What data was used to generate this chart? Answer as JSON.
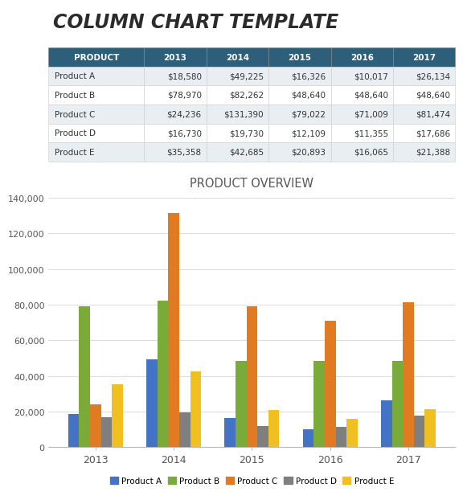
{
  "title": "COLUMN CHART TEMPLATE",
  "chart_title": "PRODUCT OVERVIEW",
  "header_bg": "#2E5F7A",
  "years": [
    "2013",
    "2014",
    "2015",
    "2016",
    "2017"
  ],
  "products": [
    "Product A",
    "Product B",
    "Product C",
    "Product D",
    "Product E"
  ],
  "data": {
    "Product A": [
      18580,
      49225,
      16326,
      10017,
      26134
    ],
    "Product B": [
      78970,
      82262,
      48640,
      48640,
      48640
    ],
    "Product C": [
      24236,
      131390,
      79022,
      71009,
      81474
    ],
    "Product D": [
      16730,
      19730,
      12109,
      11355,
      17686
    ],
    "Product E": [
      35358,
      42685,
      20893,
      16065,
      21388
    ]
  },
  "bar_colors": {
    "Product A": "#4472C4",
    "Product B": "#7AAB39",
    "Product C": "#E07B22",
    "Product D": "#7F7F7F",
    "Product E": "#F0C020"
  },
  "ylim": [
    0,
    140000
  ],
  "yticks": [
    0,
    20000,
    40000,
    60000,
    80000,
    100000,
    120000,
    140000
  ],
  "background_color": "#FFFFFF",
  "grid_color": "#DDDDDD",
  "odd_bg": "#E8EEF2",
  "even_bg": "#FFFFFF",
  "title_fontsize": 17,
  "header_fontsize": 7.5,
  "cell_fontsize": 7.5
}
